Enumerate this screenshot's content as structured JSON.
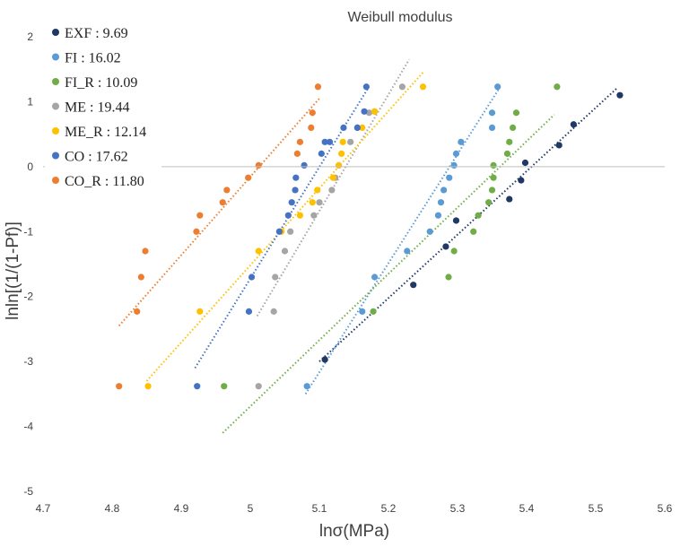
{
  "chart_data": {
    "type": "scatter",
    "title": "Weibull modulus",
    "xlabel": "lnσ(MPa)",
    "ylabel": "lnln[(1/(1-Pf)]",
    "xlim": [
      4.7,
      5.6
    ],
    "ylim": [
      -5,
      2
    ],
    "x_ticks": [
      "4.7",
      "4.8",
      "4.9",
      "5",
      "5.1",
      "5.2",
      "5.3",
      "5.4",
      "5.5",
      "5.6"
    ],
    "y_ticks": [
      "2",
      "1",
      "0",
      "-1",
      "-2",
      "-3",
      "-4",
      "-5"
    ],
    "grid": false,
    "legend_position": "top-left",
    "series": [
      {
        "name": "EXF : 9.69",
        "color": "#1F3864",
        "x": [
          5.108,
          5.236,
          5.283,
          5.298,
          5.375,
          5.392,
          5.398,
          5.447,
          5.468,
          5.535
        ],
        "y": [
          -2.97,
          -1.82,
          -1.23,
          -0.83,
          -0.5,
          -0.21,
          0.06,
          0.33,
          0.65,
          1.1
        ],
        "trend": {
          "x": [
            5.1,
            5.53
          ],
          "y": [
            -3.0,
            1.2
          ]
        }
      },
      {
        "name": "FI : 16.02",
        "color": "#5B9BD5",
        "x": [
          5.082,
          5.162,
          5.18,
          5.227,
          5.26,
          5.272,
          5.276,
          5.28,
          5.288,
          5.295,
          5.298,
          5.305,
          5.35,
          5.35,
          5.358
        ],
        "y": [
          -3.38,
          -2.23,
          -1.7,
          -1.3,
          -1.0,
          -0.75,
          -0.55,
          -0.36,
          -0.17,
          0.02,
          0.2,
          0.38,
          0.6,
          0.83,
          1.23
        ],
        "trend": {
          "x": [
            5.08,
            5.36
          ],
          "y": [
            -3.5,
            1.2
          ]
        }
      },
      {
        "name": "FI_R : 10.09",
        "color": "#70AD47",
        "x": [
          4.962,
          5.178,
          5.287,
          5.295,
          5.323,
          5.33,
          5.345,
          5.35,
          5.352,
          5.352,
          5.372,
          5.375,
          5.38,
          5.385,
          5.444
        ],
        "y": [
          -3.38,
          -2.23,
          -1.7,
          -1.3,
          -1.0,
          -0.75,
          -0.55,
          -0.36,
          -0.17,
          0.02,
          0.2,
          0.38,
          0.6,
          0.83,
          1.23
        ],
        "trend": {
          "x": [
            4.96,
            5.44
          ],
          "y": [
            -4.1,
            0.8
          ]
        }
      },
      {
        "name": "ME : 19.44",
        "color": "#A5A5A5",
        "x": [
          5.012,
          5.034,
          5.036,
          5.05,
          5.058,
          5.092,
          5.1,
          5.118,
          5.123,
          5.128,
          5.145,
          5.155,
          5.172,
          5.18,
          5.22
        ],
        "y": [
          -3.38,
          -2.23,
          -1.7,
          -1.3,
          -1.0,
          -0.75,
          -0.55,
          -0.36,
          -0.17,
          0.02,
          0.38,
          0.6,
          0.83,
          0.85,
          1.23
        ],
        "trend": {
          "x": [
            5.01,
            5.23
          ],
          "y": [
            -2.3,
            1.65
          ]
        }
      },
      {
        "name": "ME_R : 12.14",
        "color": "#FFC000",
        "x": [
          4.852,
          4.927,
          5.012,
          5.045,
          5.072,
          5.09,
          5.097,
          5.12,
          5.128,
          5.132,
          5.134,
          5.162,
          5.18,
          5.25
        ],
        "y": [
          -3.38,
          -2.23,
          -1.3,
          -1.0,
          -0.75,
          -0.55,
          -0.36,
          -0.17,
          0.02,
          0.2,
          0.38,
          0.6,
          0.85,
          1.23
        ],
        "trend": {
          "x": [
            4.85,
            5.25
          ],
          "y": [
            -3.3,
            1.45
          ]
        }
      },
      {
        "name": "CO : 17.62",
        "color": "#4472C4",
        "x": [
          4.923,
          4.998,
          5.002,
          5.042,
          5.055,
          5.06,
          5.065,
          5.066,
          5.078,
          5.103,
          5.108,
          5.115,
          5.135,
          5.155,
          5.165,
          5.168
        ],
        "y": [
          -3.38,
          -2.23,
          -1.7,
          -1.0,
          -0.75,
          -0.55,
          -0.36,
          -0.17,
          0.02,
          0.2,
          0.38,
          0.38,
          0.6,
          0.6,
          0.85,
          1.23
        ],
        "trend": {
          "x": [
            4.92,
            5.17
          ],
          "y": [
            -3.1,
            1.2
          ]
        }
      },
      {
        "name": "CO_R : 11.80",
        "color": "#ED7D31",
        "x": [
          4.81,
          4.836,
          4.842,
          4.848,
          4.922,
          4.927,
          4.96,
          4.966,
          4.997,
          5.012,
          5.068,
          5.072,
          5.088,
          5.09,
          5.098
        ],
        "y": [
          -3.38,
          -2.23,
          -1.7,
          -1.3,
          -1.0,
          -0.75,
          -0.55,
          -0.36,
          -0.17,
          0.02,
          0.2,
          0.38,
          0.6,
          0.83,
          1.23
        ],
        "trend": {
          "x": [
            4.81,
            5.1
          ],
          "y": [
            -2.45,
            1.05
          ]
        }
      }
    ]
  }
}
